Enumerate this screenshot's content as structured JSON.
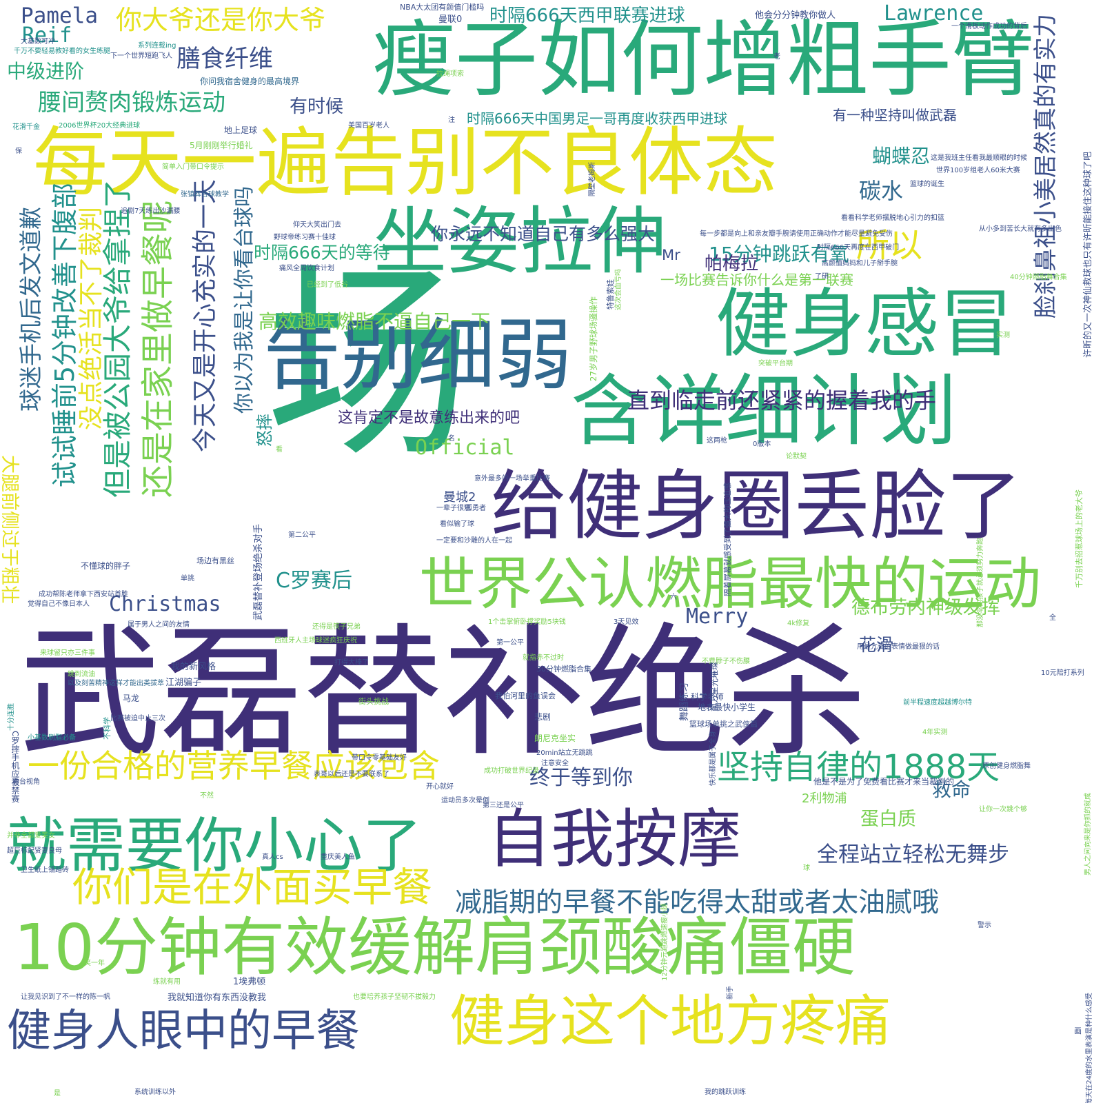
{
  "palette": {
    "purple": "#3f2f78",
    "indigo": "#3b4f8a",
    "blue": "#31688e",
    "teal": "#21918c",
    "green": "#29a97a",
    "lime": "#7ad151",
    "yellow": "#e6e21f",
    "background": "#ffffff"
  },
  "words": [
    {
      "text": "武磊替补绝杀",
      "color": "purple"
    },
    {
      "text": "场",
      "color": "green"
    },
    {
      "text": "瘦子如何增粗手臂",
      "color": "green"
    },
    {
      "text": "每天一遍告别不良体态",
      "color": "yellow"
    },
    {
      "text": "坐姿拉伸",
      "color": "green"
    },
    {
      "text": "告别细弱",
      "color": "blue"
    },
    {
      "text": "健身感冒",
      "color": "green"
    },
    {
      "text": "含详细计划",
      "color": "green"
    },
    {
      "text": "给健身圈丢脸了",
      "color": "purple"
    },
    {
      "text": "世界公认燃脂最快的运动",
      "color": "lime"
    },
    {
      "text": "10分钟有效缓解肩颈酸痛僵硬",
      "color": "lime"
    },
    {
      "text": "就需要你小心了",
      "color": "green"
    },
    {
      "text": "自我按摩",
      "color": "purple"
    },
    {
      "text": "健身这个地方疼痛",
      "color": "yellow"
    },
    {
      "text": "健身人眼中的早餐",
      "color": "indigo"
    },
    {
      "text": "你们是在外面买早餐",
      "color": "yellow"
    },
    {
      "text": "一份合格的营养早餐应该包含",
      "color": "yellow"
    },
    {
      "text": "坚持自律的1888天",
      "color": "green"
    },
    {
      "text": "减脂期的早餐不能吃得太甜或者太油腻哦",
      "color": "blue"
    },
    {
      "text": "终于等到你",
      "color": "indigo"
    },
    {
      "text": "全程站立轻松无舞步",
      "color": "indigo"
    },
    {
      "text": "直到临走前还紧紧的握着我的手",
      "color": "purple"
    },
    {
      "text": "这肯定不是故意练出来的吧",
      "color": "purple"
    },
    {
      "text": "高效趣味燃脂不逼自己一下",
      "color": "lime"
    },
    {
      "text": "你永远不知道自己有多么强大",
      "color": "indigo"
    },
    {
      "text": "时隔666天的等待",
      "color": "green"
    },
    {
      "text": "15分钟跳跃有氧",
      "color": "teal"
    },
    {
      "text": "一场比赛告诉你什么是第一联赛",
      "color": "lime"
    },
    {
      "text": "所以",
      "color": "yellow"
    },
    {
      "text": "帕梅拉",
      "color": "purple"
    },
    {
      "text": "Mr",
      "color": "indigo"
    },
    {
      "text": "碳水",
      "color": "blue"
    },
    {
      "text": "蝴蝶忍",
      "color": "teal"
    },
    {
      "text": "时隔666天中国男足一哥再度收获西甲进球",
      "color": "teal"
    },
    {
      "text": "有一种坚持叫做武磊",
      "color": "indigo"
    },
    {
      "text": "时隔666天西甲联赛进球",
      "color": "teal"
    },
    {
      "text": "你大爷还是你大爷",
      "color": "yellow"
    },
    {
      "text": "膳食纤维",
      "color": "indigo"
    },
    {
      "text": "中级进阶",
      "color": "green"
    },
    {
      "text": "腰间赘肉锻炼运动",
      "color": "green"
    },
    {
      "text": "有时候",
      "color": "indigo"
    },
    {
      "text": "Pamela",
      "color": "indigo"
    },
    {
      "text": "Reif",
      "color": "teal"
    },
    {
      "text": "Lawrence",
      "color": "teal"
    },
    {
      "text": "Official",
      "color": "lime"
    },
    {
      "text": "Christmas",
      "color": "indigo"
    },
    {
      "text": "Merry",
      "color": "indigo"
    },
    {
      "text": "C罗赛后",
      "color": "teal"
    },
    {
      "text": "德布劳内神级发挥",
      "color": "lime"
    },
    {
      "text": "花滑",
      "color": "indigo"
    },
    {
      "text": "救命",
      "color": "blue"
    },
    {
      "text": "蛋白质",
      "color": "lime"
    },
    {
      "text": "2利物浦",
      "color": "lime"
    },
    {
      "text": "曼城2",
      "color": "indigo"
    },
    {
      "text": "大腿前侧过于粗壮",
      "color": "yellow"
    },
    {
      "text": "试试睡前5分钟改善下腹部",
      "color": "teal"
    },
    {
      "text": "但是被公园大爷给拿捏了",
      "color": "green"
    },
    {
      "text": "还是在家里做早餐呢",
      "color": "lime"
    },
    {
      "text": "没点绝活当不了裁判",
      "color": "yellow"
    },
    {
      "text": "今天又是开心充实的一天",
      "color": "indigo"
    },
    {
      "text": "你以为我是让你看台球吗",
      "color": "blue"
    },
    {
      "text": "球迷手机后发文道歉",
      "color": "blue"
    },
    {
      "text": "怒摔",
      "color": "teal"
    },
    {
      "text": "脸刹鼻祖小美居然真的有实力",
      "color": "indigo"
    },
    {
      "text": "NBA大太团有颜值门槛吗",
      "color": "indigo"
    },
    {
      "text": "曼联0",
      "color": "indigo"
    },
    {
      "text": "他会分分钟教你做人",
      "color": "indigo"
    },
    {
      "text": "一个滑板动作成功的背后",
      "color": "indigo"
    },
    {
      "text": "大基数可冲",
      "color": "indigo"
    },
    {
      "text": "千万不要轻易教好看的女生练腿",
      "color": "teal"
    },
    {
      "text": "系列连载ing",
      "color": "teal"
    },
    {
      "text": "下一个世界短跑飞人",
      "color": "indigo"
    },
    {
      "text": "你问我宿舍健身的最高境界",
      "color": "blue"
    },
    {
      "text": "拉绳项索",
      "color": "lime"
    },
    {
      "text": "花滑千金",
      "color": "teal"
    },
    {
      "text": "2006世界杯20大经典进球",
      "color": "green"
    },
    {
      "text": "美国百岁老人",
      "color": "indigo"
    },
    {
      "text": "注",
      "color": "indigo"
    },
    {
      "text": "地上足球",
      "color": "indigo"
    },
    {
      "text": "5月刚刚举行婚礼",
      "color": "lime"
    },
    {
      "text": "简单入门带口令提示",
      "color": "lime"
    },
    {
      "text": "张镇辉台球教学",
      "color": "blue"
    },
    {
      "text": "追剧7天练出沙漏腰",
      "color": "indigo"
    },
    {
      "text": "仰天大笑出门去",
      "color": "indigo"
    },
    {
      "text": "野球帝练习赛十佳球",
      "color": "indigo"
    },
    {
      "text": "痛风全周饮食计划",
      "color": "indigo"
    },
    {
      "text": "已经到了低谷",
      "color": "lime"
    },
    {
      "text": "每一步都是向上和亲友瓣手腕请使用正确动作才能尽量避免受伤",
      "color": "indigo"
    },
    {
      "text": "时隔666天再度在西甲破门",
      "color": "indigo"
    },
    {
      "text": "高颜值妈妈和儿子掰手腕",
      "color": "indigo"
    },
    {
      "text": "看看科学老师摆脱地心引力的扣篮",
      "color": "indigo"
    },
    {
      "text": "篮球的诞生",
      "color": "indigo"
    },
    {
      "text": "世界100岁组老人60米大赛",
      "color": "indigo"
    },
    {
      "text": "这是我班主任看我最顺眼的时候",
      "color": "indigo"
    },
    {
      "text": "从小多到苦长大就有多出色",
      "color": "indigo"
    },
    {
      "text": "40分钟燃脂舞合集",
      "color": "lime"
    },
    {
      "text": "许昕的又一次神仙救球也只有许昕能接住这种球了吧",
      "color": "indigo"
    },
    {
      "text": "千万别去招惹球场上的老大爷",
      "color": "lime"
    },
    {
      "text": "那没伞的孩子就必须努力奔跑",
      "color": "lime"
    },
    {
      "text": "男人之间向来是你抓的就成",
      "color": "lime"
    },
    {
      "text": "揭秘每天在24度的水里表演是种什么感受",
      "color": "indigo"
    },
    {
      "text": "10元陪打系列",
      "color": "indigo"
    },
    {
      "text": "用最亢奋的表情做最狠的话",
      "color": "indigo"
    },
    {
      "text": "前半程速度超越博尔特",
      "color": "teal"
    },
    {
      "text": "4年实测",
      "color": "lime"
    },
    {
      "text": "原创健身燃脂舞",
      "color": "indigo"
    },
    {
      "text": "他是不是为了免费看比赛才来当裁判的",
      "color": "indigo"
    },
    {
      "text": "让你一次跳个够",
      "color": "lime"
    },
    {
      "text": "卫生纸上铺路砖",
      "color": "indigo"
    },
    {
      "text": "超巨标配贤妻良母",
      "color": "indigo"
    },
    {
      "text": "并非全都爱美女",
      "color": "lime"
    },
    {
      "text": "看台视角",
      "color": "indigo"
    },
    {
      "text": "小基数刷脂必备",
      "color": "teal"
    },
    {
      "text": "十分连胜",
      "color": "teal"
    },
    {
      "text": "不科学",
      "color": "teal"
    },
    {
      "text": "比赛被迫中止三次",
      "color": "indigo"
    },
    {
      "text": "马龙",
      "color": "indigo"
    },
    {
      "text": "以及刻苦精神这样才能出类拔萃",
      "color": "blue"
    },
    {
      "text": "跳到流油",
      "color": "lime"
    },
    {
      "text": "来球留只亦三件事",
      "color": "lime"
    },
    {
      "text": "西班牙人主场球迷疯狂庆祝",
      "color": "lime"
    },
    {
      "text": "属于男人之间的友情",
      "color": "indigo"
    },
    {
      "text": "觉得自己不像日本人",
      "color": "indigo"
    },
    {
      "text": "成功帮陈老师拿下西安站首胜",
      "color": "indigo"
    },
    {
      "text": "不懂球的胖子",
      "color": "indigo"
    },
    {
      "text": "场边有黑丝",
      "color": "indigo"
    },
    {
      "text": "单挑",
      "color": "indigo"
    },
    {
      "text": "武磊替补登场绝杀对手",
      "color": "indigo"
    },
    {
      "text": "第二公平",
      "color": "indigo"
    },
    {
      "text": "一辈子很短",
      "color": "indigo"
    },
    {
      "text": "看似输了球",
      "color": "indigo"
    },
    {
      "text": "一定要和沙雕的人在一起",
      "color": "indigo"
    },
    {
      "text": "意外最多的一场举重比赛",
      "color": "indigo"
    },
    {
      "text": "孤勇者",
      "color": "indigo"
    },
    {
      "text": "我的新风格",
      "color": "indigo"
    },
    {
      "text": "江湖骗子",
      "color": "indigo"
    },
    {
      "text": "还得是筷子兄弟",
      "color": "lime"
    },
    {
      "text": "打得大棒了",
      "color": "indigo"
    },
    {
      "text": "1个击掌俯卧撑奖励5块钱",
      "color": "lime"
    },
    {
      "text": "第一公平",
      "color": "indigo"
    },
    {
      "text": "就指赤不过时",
      "color": "lime"
    },
    {
      "text": "30分钟燃脂合集",
      "color": "indigo"
    },
    {
      "text": "3天见效",
      "color": "indigo"
    },
    {
      "text": "4k修复",
      "color": "lime"
    },
    {
      "text": "不费脖子不伤腰",
      "color": "lime"
    },
    {
      "text": "科学老师",
      "color": "indigo"
    },
    {
      "text": "我怕河里的鱼误会",
      "color": "indigo"
    },
    {
      "text": "悲剧",
      "color": "indigo"
    },
    {
      "text": "朗尼克坐实",
      "color": "lime"
    },
    {
      "text": "20min站立无跳跳",
      "color": "indigo"
    },
    {
      "text": "注意安全",
      "color": "indigo"
    },
    {
      "text": "成功打破世界纪录",
      "color": "lime"
    },
    {
      "text": "带口令零基础友好",
      "color": "indigo"
    },
    {
      "text": "表哥以后还是不要联系了",
      "color": "indigo"
    },
    {
      "text": "开心就好",
      "color": "indigo"
    },
    {
      "text": "运动员多次晕倒",
      "color": "indigo"
    },
    {
      "text": "第三还是公平",
      "color": "indigo"
    },
    {
      "text": "真人cs",
      "color": "indigo"
    },
    {
      "text": "重庆美人鱼",
      "color": "indigo"
    },
    {
      "text": "1埃弗顿",
      "color": "indigo"
    },
    {
      "text": "我就知道你有东西没教我",
      "color": "indigo"
    },
    {
      "text": "练就有用",
      "color": "lime"
    },
    {
      "text": "让我见识到了不一样的陈一帆",
      "color": "indigo"
    },
    {
      "text": "也要培养孩子坚韧不拔毅力",
      "color": "lime"
    },
    {
      "text": "系统训练以外",
      "color": "indigo"
    },
    {
      "text": "我的跳跃训练",
      "color": "indigo"
    },
    {
      "text": "笑一年",
      "color": "lime"
    },
    {
      "text": "舞蹈练习",
      "color": "indigo"
    },
    {
      "text": "地表最快小学生",
      "color": "indigo"
    },
    {
      "text": "篮球场单挑之武侠篇",
      "color": "indigo"
    },
    {
      "text": "C罗摔手机应被禁赛",
      "color": "indigo"
    },
    {
      "text": "隔着屏幕就感受到了强大的压迫感",
      "color": "indigo"
    },
    {
      "text": "隔壁老姆斯",
      "color": "indigo"
    },
    {
      "text": "突破平台期",
      "color": "lime"
    },
    {
      "text": "27岁男子野球场骚操作",
      "color": "lime"
    },
    {
      "text": "特鲁索娃",
      "color": "indigo"
    },
    {
      "text": "这次会血亏吗",
      "color": "lime"
    },
    {
      "text": "0版本",
      "color": "indigo"
    },
    {
      "text": "论默契",
      "color": "lime"
    },
    {
      "text": "这两枪",
      "color": "indigo"
    },
    {
      "text": "12分钟元跑跳燃速瘦小腿",
      "color": "lime"
    },
    {
      "text": "新手",
      "color": "indigo"
    },
    {
      "text": "快乐都是属于全身",
      "color": "indigo"
    },
    {
      "text": "前方星光璀璨",
      "color": "indigo"
    },
    {
      "text": "街头挑战",
      "color": "lime"
    },
    {
      "text": "不然",
      "color": "lime"
    },
    {
      "text": "看",
      "color": "lime"
    },
    {
      "text": "名",
      "color": "indigo"
    },
    {
      "text": "六",
      "color": "indigo"
    },
    {
      "text": "全",
      "color": "indigo"
    },
    {
      "text": "球",
      "color": "lime"
    },
    {
      "text": "画",
      "color": "indigo"
    },
    {
      "text": "老",
      "color": "indigo"
    },
    {
      "text": "保",
      "color": "indigo"
    },
    {
      "text": "实测",
      "color": "lime"
    },
    {
      "text": "了研",
      "color": "indigo"
    },
    {
      "text": "是",
      "color": "lime"
    },
    {
      "text": "警示",
      "color": "indigo"
    }
  ]
}
